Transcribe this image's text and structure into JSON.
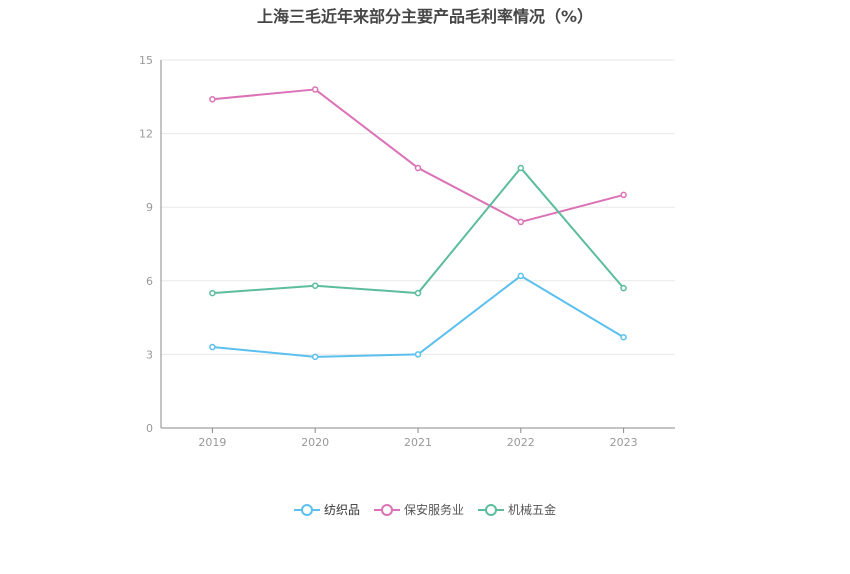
{
  "chart_data": {
    "type": "line",
    "title": "上海三毛近年来部分主要产品毛利率情况（%）",
    "categories": [
      "2019",
      "2020",
      "2021",
      "2022",
      "2023"
    ],
    "ylim": [
      0,
      15
    ],
    "yticks": [
      "0",
      "3",
      "6",
      "9",
      "12",
      "15"
    ],
    "grid": true,
    "legend_position": "bottom",
    "series": [
      {
        "name": "纺织品",
        "color": "#5bc0ee",
        "values": [
          3.3,
          2.9,
          3.0,
          6.2,
          3.7
        ]
      },
      {
        "name": "保安服务业",
        "color": "#db72b5",
        "values": [
          13.4,
          13.8,
          10.6,
          8.4,
          9.5
        ]
      },
      {
        "name": "机械五金",
        "color": "#5cbc9e",
        "values": [
          5.5,
          5.8,
          5.5,
          10.6,
          5.7
        ]
      }
    ]
  }
}
